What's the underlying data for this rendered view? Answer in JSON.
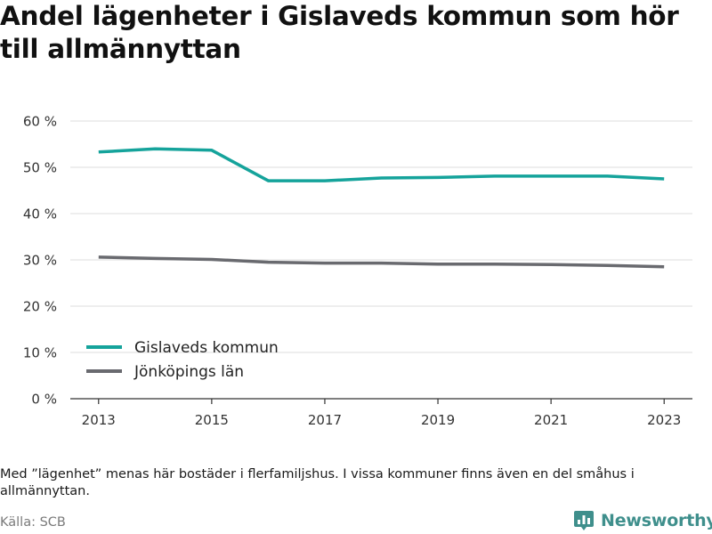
{
  "header": {
    "title": "Andel lägenheter i Gislaveds kommun som hör till allmännyttan"
  },
  "chart_data": {
    "type": "line",
    "x": [
      2013,
      2014,
      2015,
      2016,
      2017,
      2018,
      2019,
      2020,
      2021,
      2022,
      2023
    ],
    "series": [
      {
        "name": "Gislaveds kommun",
        "color": "#15a39b",
        "values": [
          53.3,
          54.0,
          53.7,
          47.1,
          47.1,
          47.7,
          47.8,
          48.1,
          48.1,
          48.1,
          47.5
        ]
      },
      {
        "name": "Jönköpings län",
        "color": "#696a6f",
        "values": [
          30.6,
          30.3,
          30.1,
          29.5,
          29.3,
          29.3,
          29.1,
          29.1,
          29.0,
          28.8,
          28.5
        ]
      }
    ],
    "xticks": [
      "2013",
      "2015",
      "2017",
      "2019",
      "2021",
      "2023"
    ],
    "yticks": [
      "0 %",
      "10 %",
      "20 %",
      "30 %",
      "40 %",
      "50 %",
      "60 %"
    ],
    "ylim": [
      0,
      60
    ],
    "xlim": [
      2012.5,
      2023.5
    ],
    "grid": true,
    "legend_position": "bottom-left",
    "xlabel": "",
    "ylabel": ""
  },
  "footer": {
    "note": "Med ”lägenhet” menas här bostäder i flerfamiljshus. I vissa kommuner finns även en del småhus i allmännyttan.",
    "source": "Källa: SCB",
    "brand": "Newsworthy",
    "brand_icon": "newsworthy-logo-icon"
  }
}
